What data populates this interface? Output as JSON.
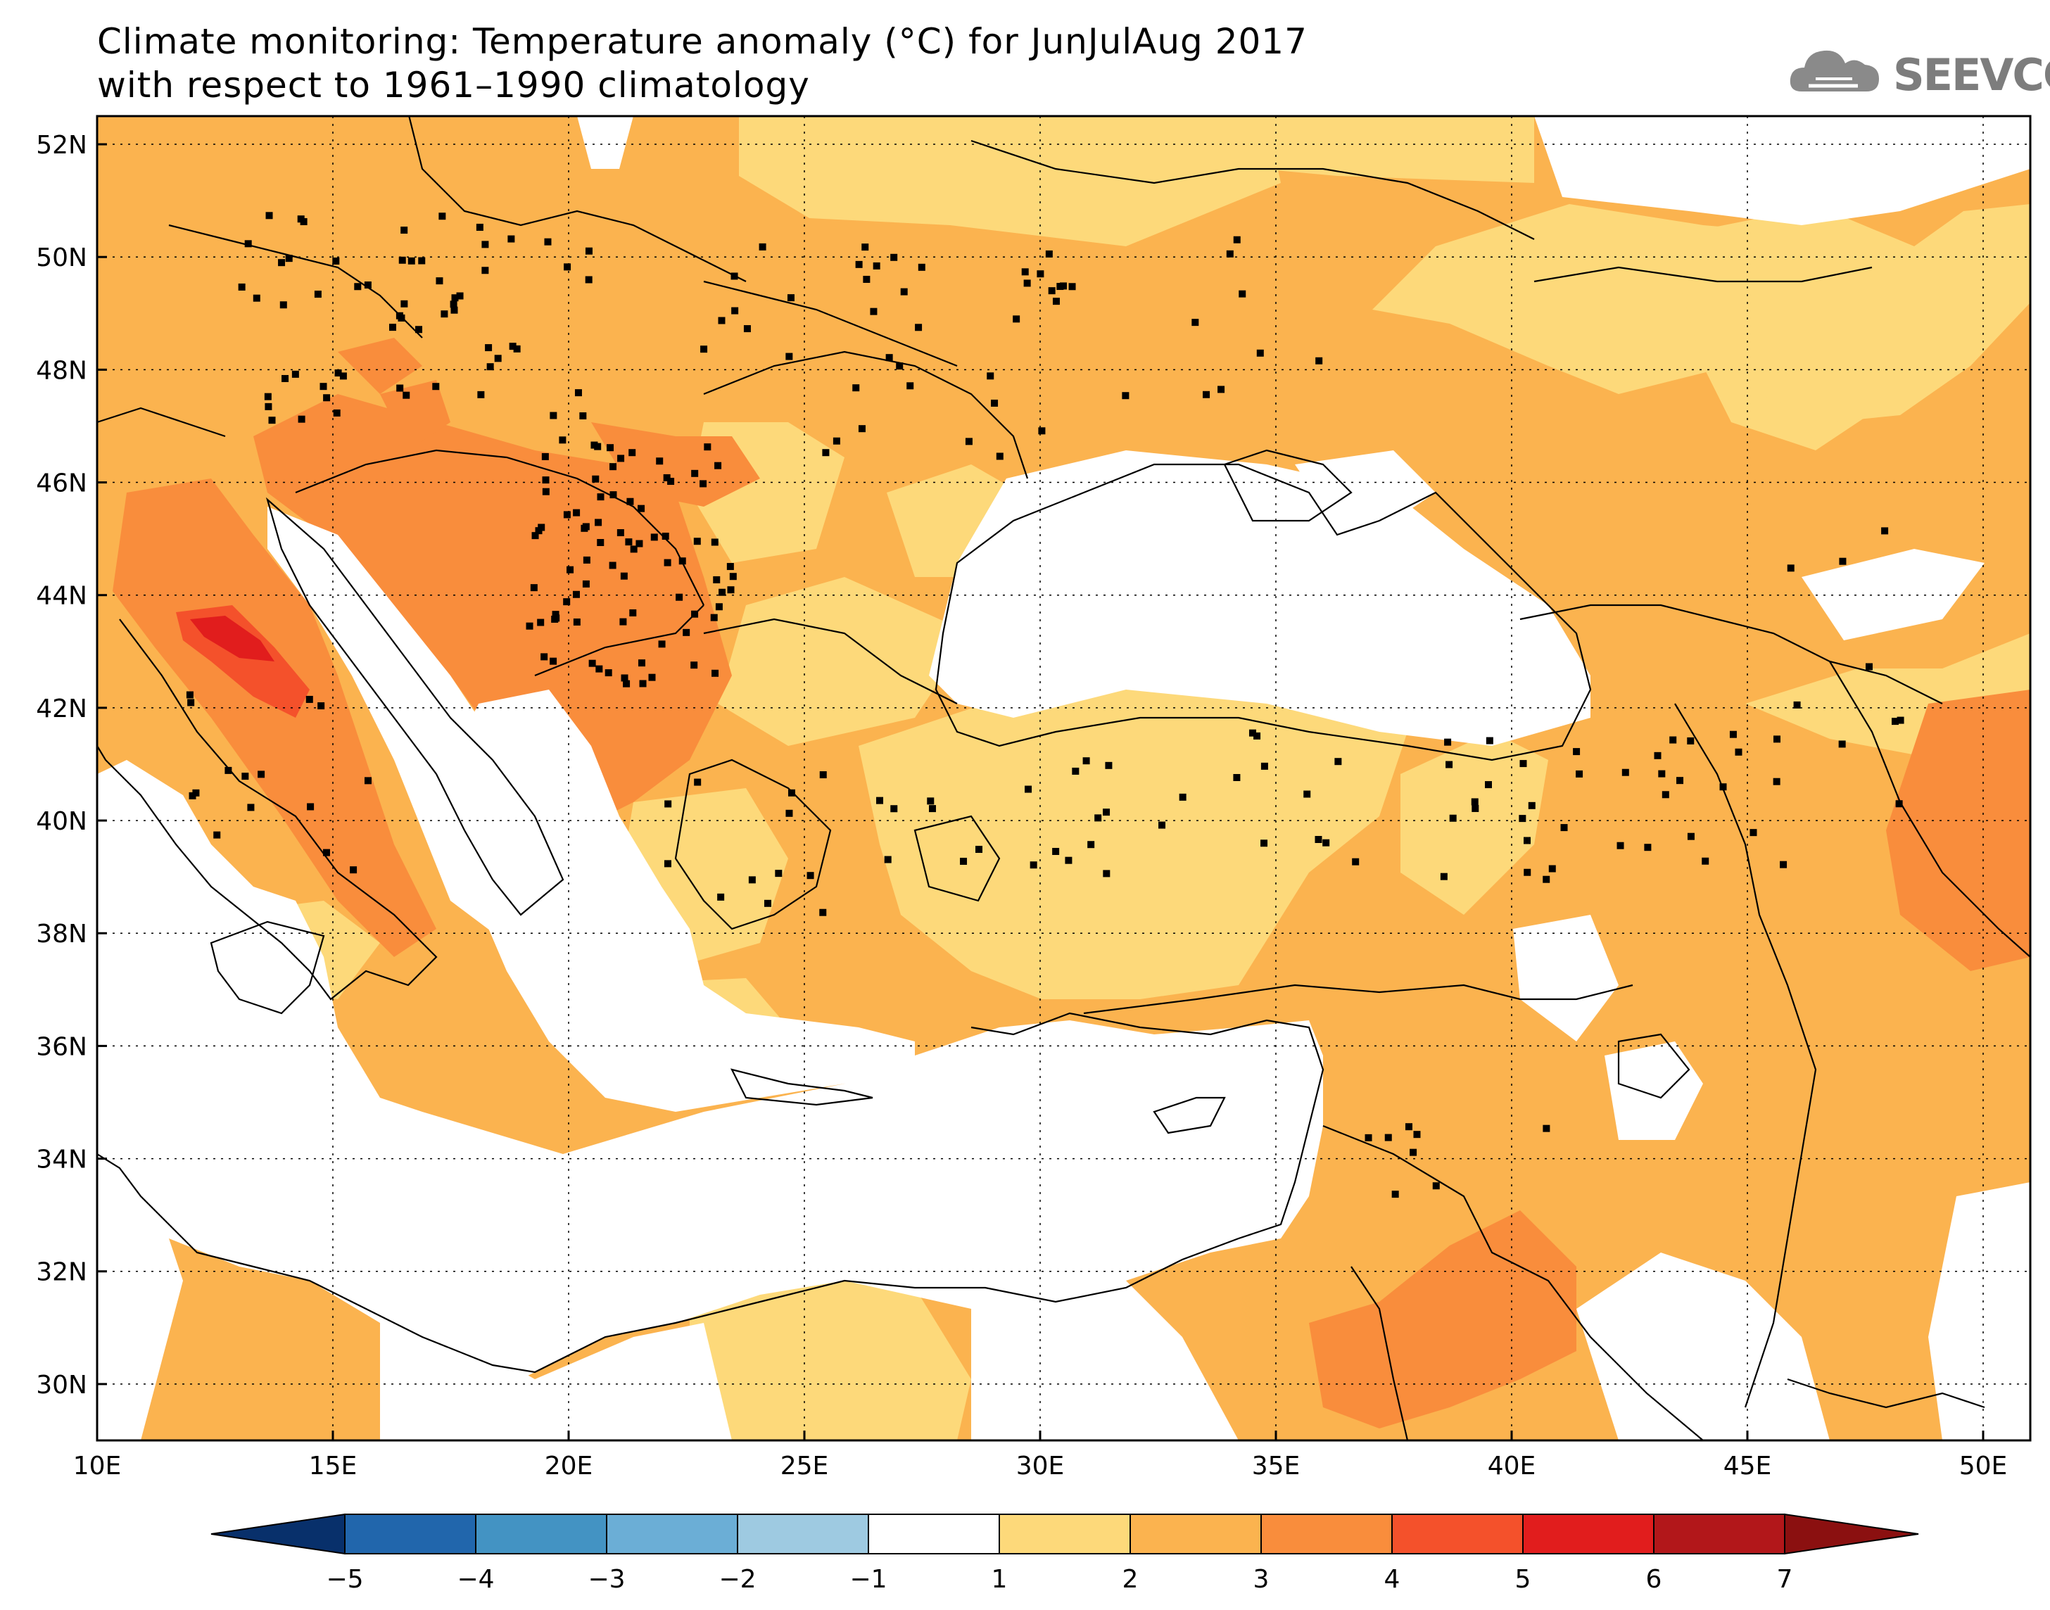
{
  "title": {
    "line1": "Climate monitoring: Temperature anomaly (°C) for JunJulAug 2017",
    "line2": "with respect to 1961–1990 climatology"
  },
  "logo": {
    "text": "SEEVCCC",
    "icon": "cloud-icon"
  },
  "map": {
    "lon_range": [
      10,
      51
    ],
    "lat_range": [
      29,
      52.5
    ],
    "lon_ticks": [
      "10E",
      "15E",
      "20E",
      "25E",
      "30E",
      "35E",
      "40E",
      "45E",
      "50E"
    ],
    "lat_ticks": [
      "30N",
      "32N",
      "34N",
      "36N",
      "38N",
      "40N",
      "42N",
      "44N",
      "46N",
      "48N",
      "50N",
      "52N"
    ],
    "grid": "dotted"
  },
  "colorbar": {
    "labels": [
      "−5",
      "−4",
      "−3",
      "−2",
      "−1",
      "1",
      "2",
      "3",
      "4",
      "5",
      "6",
      "7"
    ],
    "colors": [
      "#08306b",
      "#2166ac",
      "#4393c3",
      "#6baed6",
      "#9ecae1",
      "#ffffff",
      "#fdd97a",
      "#fbb34f",
      "#f98d3c",
      "#f4512b",
      "#e11d1d",
      "#b2171a",
      "#8b1010"
    ]
  }
}
